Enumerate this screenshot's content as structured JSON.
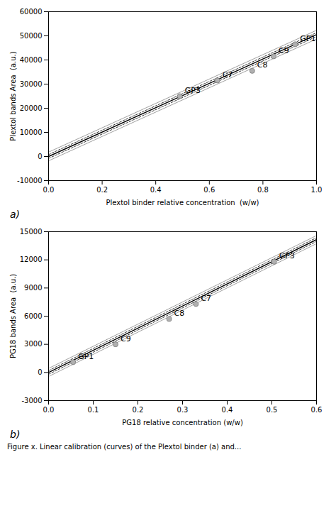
{
  "chart_data": [
    {
      "type": "scatter",
      "title": "a)",
      "xlabel": "Plextol binder relative concentration  (w/w)",
      "ylabel": "Plextol bands Area  (a.u.)",
      "x": [
        0.49,
        0.63,
        0.76,
        0.84,
        0.92
      ],
      "values": [
        25000,
        31500,
        35500,
        41500,
        46500
      ],
      "point_labels": [
        "GP3",
        "C7",
        "C8",
        "C9",
        "GP1"
      ],
      "color": "#b0b0b0",
      "marker": "circle",
      "lines": [
        {
          "x": [
            0.0,
            1.0
          ],
          "values": [
            1800,
            52300
          ],
          "color": "#888888",
          "line_style": "solid"
        },
        {
          "x": [
            0.0,
            1.0
          ],
          "values": [
            -1800,
            48700
          ],
          "color": "#888888",
          "line_style": "solid"
        },
        {
          "x": [
            0.0,
            1.0
          ],
          "values": [
            800,
            51300
          ],
          "color": "#000000",
          "line_style": "dashed"
        },
        {
          "x": [
            0.0,
            1.0
          ],
          "values": [
            -800,
            49700
          ],
          "color": "#000000",
          "line_style": "dashed"
        },
        {
          "x": [
            0.0,
            1.0
          ],
          "values": [
            0,
            50500
          ],
          "color": "#000000",
          "line_style": "solid"
        }
      ],
      "xlim": [
        0.0,
        1.0
      ],
      "ylim": [
        -10000,
        60000
      ],
      "xticks": [
        {
          "value": 0.0,
          "label": "0.0"
        },
        {
          "value": 0.2,
          "label": "0.2"
        },
        {
          "value": 0.4,
          "label": "0.4"
        },
        {
          "value": 0.6,
          "label": "0.6"
        },
        {
          "value": 0.8,
          "label": "0.8"
        },
        {
          "value": 1.0,
          "label": "1.0"
        }
      ],
      "yticks": [
        -10000,
        0,
        10000,
        20000,
        30000,
        40000,
        50000,
        60000
      ],
      "grid": false
    },
    {
      "type": "scatter",
      "title": "b)",
      "xlabel": "PG18 relative concentration (w/w)",
      "ylabel": "PG18 bands Area  (a.u.)",
      "x": [
        0.055,
        0.15,
        0.27,
        0.33,
        0.505
      ],
      "values": [
        1100,
        3000,
        5700,
        7300,
        11800
      ],
      "point_labels": [
        "GP1",
        "C9",
        "C8",
        "C7",
        "GP3"
      ],
      "color": "#b0b0b0",
      "marker": "circle",
      "lines": [
        {
          "x": [
            0.0,
            0.6
          ],
          "values": [
            430,
            14590
          ],
          "color": "#888888",
          "line_style": "solid"
        },
        {
          "x": [
            0.0,
            0.6
          ],
          "values": [
            -430,
            13730
          ],
          "color": "#888888",
          "line_style": "solid"
        },
        {
          "x": [
            0.0,
            0.6
          ],
          "values": [
            200,
            14360
          ],
          "color": "#000000",
          "line_style": "dashed"
        },
        {
          "x": [
            0.0,
            0.6
          ],
          "values": [
            -200,
            13960
          ],
          "color": "#000000",
          "line_style": "dashed"
        },
        {
          "x": [
            0.0,
            0.6
          ],
          "values": [
            0,
            14160
          ],
          "color": "#000000",
          "line_style": "solid"
        }
      ],
      "xlim": [
        0.0,
        0.6
      ],
      "ylim": [
        -3000,
        15000
      ],
      "xticks": [
        {
          "value": 0.0,
          "label": "0.0"
        },
        {
          "value": 0.1,
          "label": "0.1"
        },
        {
          "value": 0.2,
          "label": "0.2"
        },
        {
          "value": 0.3,
          "label": "0.3"
        },
        {
          "value": 0.4,
          "label": "0.4"
        },
        {
          "value": 0.5,
          "label": "0.5"
        },
        {
          "value": 0.6,
          "label": "0.6"
        }
      ],
      "yticks": [
        -3000,
        0,
        3000,
        6000,
        9000,
        12000,
        15000
      ],
      "grid": false
    }
  ],
  "caption": "Figure x. Linear calibration (curves) of the Plextol binder (a) and..."
}
